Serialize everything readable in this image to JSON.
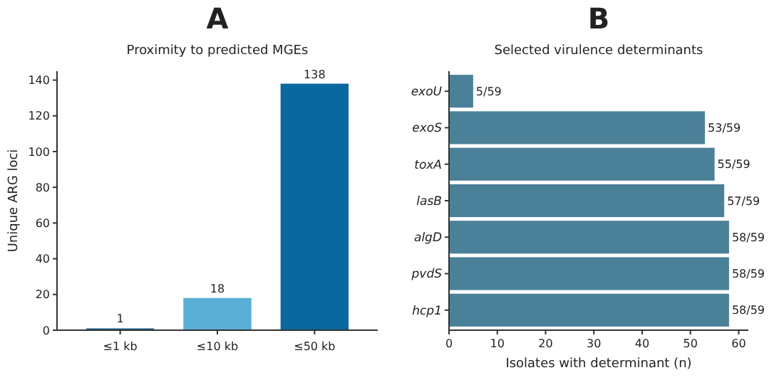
{
  "chart_data": [
    {
      "type": "bar",
      "title": "A",
      "subtitle": "Proximity to predicted MGEs",
      "ylabel": "Unique ARG loci",
      "categories": [
        "≤1 kb",
        "≤10 kb",
        "≤50 kb"
      ],
      "values": [
        1,
        18,
        138
      ],
      "colors": [
        "#1c5f8c",
        "#5aafd6",
        "#0a68a0"
      ],
      "ylim": [
        0,
        145
      ],
      "yticks": [
        0,
        20,
        40,
        60,
        80,
        100,
        120,
        140
      ],
      "data_labels": true,
      "grid": false
    },
    {
      "type": "bar",
      "orientation": "horizontal",
      "title": "B",
      "subtitle": "Selected virulence determinants",
      "xlabel": "Isolates with determinant (n)",
      "categories": [
        "exoU",
        "exoS",
        "toxA",
        "lasB",
        "algD",
        "pvdS",
        "hcp1"
      ],
      "values": [
        5,
        53,
        55,
        57,
        58,
        58,
        58
      ],
      "color": "#4a8199",
      "value_labels": [
        "5/59",
        "53/59",
        "55/59",
        "57/59",
        "58/59",
        "58/59",
        "58/59"
      ],
      "xlim": [
        0,
        62
      ],
      "xticks": [
        0,
        10,
        20,
        30,
        40,
        50,
        60
      ],
      "grid": false
    }
  ]
}
